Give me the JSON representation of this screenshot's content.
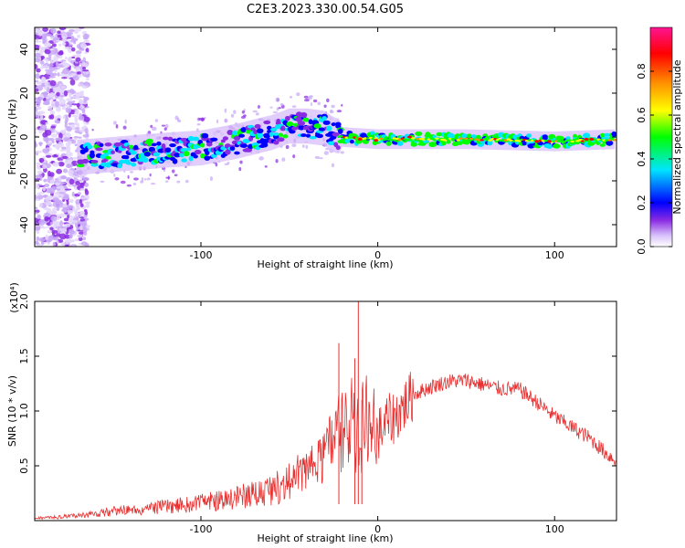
{
  "title": "C2E3.2023.330.00.54.G05",
  "chart_data": [
    {
      "type": "heatmap",
      "title": "C2E3.2023.330.00.54.G05",
      "xlabel": "Height of straight line (km)",
      "ylabel": "Frequency (Hz)",
      "xlim": [
        -194,
        135
      ],
      "ylim": [
        -50,
        50
      ],
      "xticks": [
        -100,
        0,
        100
      ],
      "xtick_labels": [
        "-100",
        "0",
        "100"
      ],
      "yticks": [
        -40,
        -20,
        0,
        20,
        40
      ],
      "ytick_labels": [
        "-40",
        "-20",
        "0",
        "20",
        "40"
      ],
      "colorbar": {
        "label": "Normalized spectral amplitude",
        "range": [
          0,
          1
        ],
        "ticks": [
          0,
          0.2,
          0.4,
          0.6,
          0.8
        ],
        "tick_labels": [
          "0.0",
          "0.2",
          "0.4",
          "0.6",
          "0.8"
        ],
        "colormap": [
          "#ffffff",
          "#c8a8f8",
          "#8a2be2",
          "#0000ff",
          "#00e5ff",
          "#00ff00",
          "#ffff00",
          "#ff8c00",
          "#ff0000",
          "#ff1493"
        ]
      },
      "ridge_x": [
        -194,
        -165,
        -150,
        -120,
        -100,
        -80,
        -60,
        -50,
        -40,
        -30,
        -25,
        -20,
        0,
        50,
        100,
        135
      ],
      "ridge_freq": [
        -10,
        -9,
        -8,
        -6,
        -5,
        -2,
        2,
        5,
        5,
        4,
        1,
        0,
        -1,
        -1,
        -2,
        -1
      ]
    },
    {
      "type": "line",
      "xlabel": "Height of straight line (km)",
      "ylabel": "SNR (10 * v/v)",
      "y_scale_label": "(x10⁴)",
      "xlim": [
        -194,
        135
      ],
      "ylim": [
        0,
        2.0
      ],
      "xticks": [
        -100,
        0,
        100
      ],
      "xtick_labels": [
        "-100",
        "0",
        "100"
      ],
      "yticks": [
        0.5,
        1.0,
        1.5,
        2.0
      ],
      "ytick_labels": [
        "0.5",
        "1.0",
        "1.5",
        "2.0"
      ],
      "series": [
        {
          "name": "SNR",
          "color": "#e83030",
          "x": [
            -194,
            -180,
            -165,
            -150,
            -135,
            -120,
            -100,
            -80,
            -65,
            -50,
            -40,
            -30,
            -25,
            -20,
            -15,
            -10,
            -8,
            -5,
            0,
            5,
            10,
            20,
            30,
            40,
            50,
            60,
            70,
            80,
            90,
            100,
            110,
            120,
            130,
            135
          ],
          "y": [
            0.02,
            0.03,
            0.05,
            0.08,
            0.1,
            0.12,
            0.15,
            0.2,
            0.25,
            0.33,
            0.45,
            0.6,
            0.8,
            0.8,
            1.0,
            0.7,
            1.0,
            0.85,
            0.78,
            0.9,
            0.95,
            1.15,
            1.22,
            1.27,
            1.28,
            1.24,
            1.2,
            1.2,
            1.08,
            0.95,
            0.85,
            0.75,
            0.6,
            0.55
          ]
        }
      ]
    }
  ]
}
